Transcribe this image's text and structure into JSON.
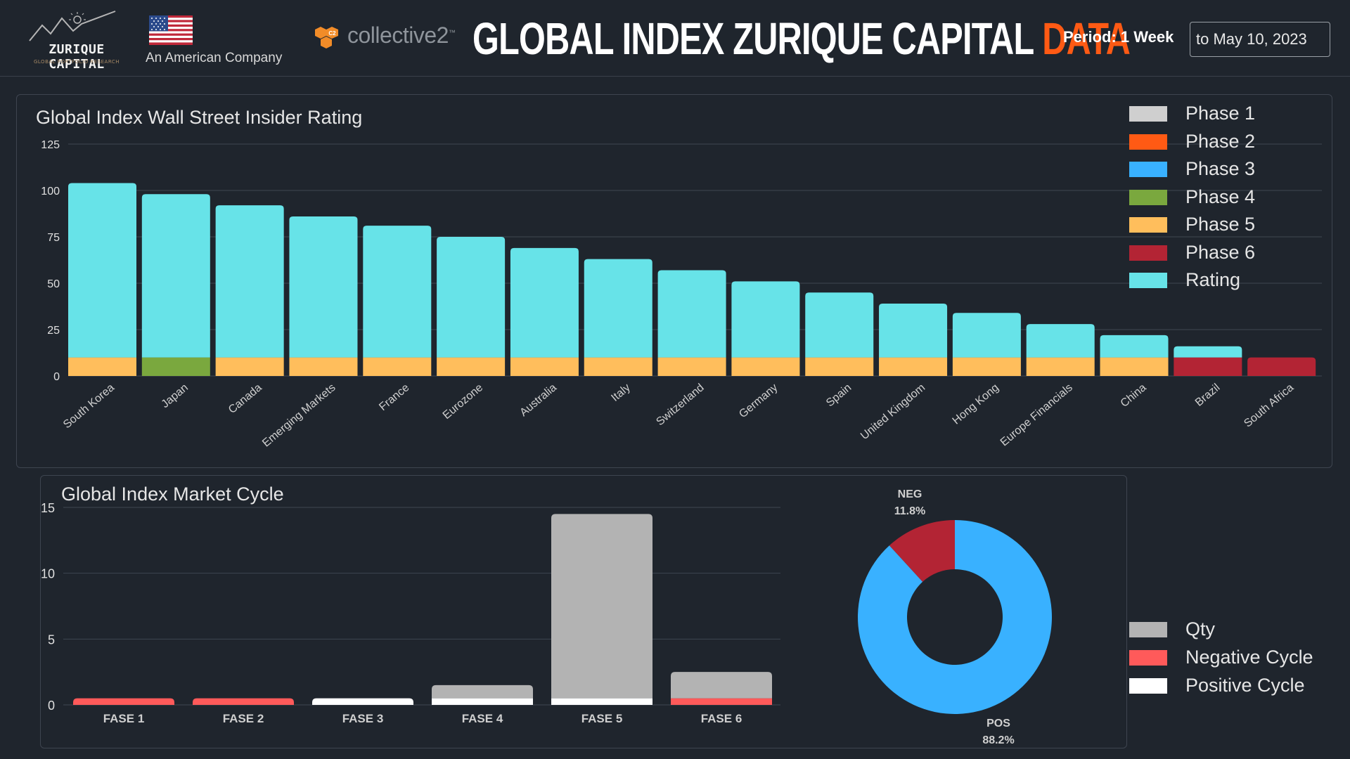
{
  "header": {
    "logo_name": "ZURIQUE CAPITAL",
    "logo_tagline": "GLOBAL PORTFOLIO RESEARCH",
    "company_note": "An American Company",
    "partner_logo": "collective2",
    "partner_badge": "C2",
    "partner_tm": "™",
    "title_main": "GLOBAL INDEX ZURIQUE CAPITAL ",
    "title_accent": "DATA",
    "period_label": "Period: 1 Week",
    "period_end": "to May 10, 2023"
  },
  "colors": {
    "phase1": "#cfcfcf",
    "phase2": "#ff5a14",
    "phase3": "#39b1ff",
    "phase4": "#7aa83e",
    "phase5": "#ffbe5c",
    "phase6": "#b32434",
    "rating": "#67e3e8",
    "qty": "#b3b3b3",
    "negative": "#ff5a5a",
    "positive": "#ffffff",
    "pos": "#39b1ff",
    "neg": "#b32434",
    "accent": "#ff5a14"
  },
  "chart_data": [
    {
      "type": "bar",
      "title": "Global Index Wall Street Insider Rating",
      "stacked": true,
      "ylim": [
        0,
        125
      ],
      "yticks": [
        0,
        25,
        50,
        75,
        100,
        125
      ],
      "grid": true,
      "legend_position": "top-right",
      "categories": [
        "South Korea",
        "Japan",
        "Canada",
        "Emerging Markets",
        "France",
        "Eurozone",
        "Australia",
        "Italy",
        "Switzerland",
        "Germany",
        "Spain",
        "United Kingdom",
        "Hong Kong",
        "Europe Financials",
        "China",
        "Brazil",
        "South Africa"
      ],
      "phase_labels": [
        "Phase 5",
        "Phase 4",
        "Phase 5",
        "Phase 5",
        "Phase 5",
        "Phase 5",
        "Phase 5",
        "Phase 5",
        "Phase 5",
        "Phase 5",
        "Phase 5",
        "Phase 5",
        "Phase 5",
        "Phase 5",
        "Phase 5",
        "Phase 6",
        "Phase 6"
      ],
      "series": [
        {
          "name": "Phase 1",
          "color_key": "phase1",
          "values": [
            0,
            0,
            0,
            0,
            0,
            0,
            0,
            0,
            0,
            0,
            0,
            0,
            0,
            0,
            0,
            0,
            0
          ]
        },
        {
          "name": "Phase 2",
          "color_key": "phase2",
          "values": [
            0,
            0,
            0,
            0,
            0,
            0,
            0,
            0,
            0,
            0,
            0,
            0,
            0,
            0,
            0,
            0,
            0
          ]
        },
        {
          "name": "Phase 3",
          "color_key": "phase3",
          "values": [
            0,
            0,
            0,
            0,
            0,
            0,
            0,
            0,
            0,
            0,
            0,
            0,
            0,
            0,
            0,
            0,
            0
          ]
        },
        {
          "name": "Phase 4",
          "color_key": "phase4",
          "values": [
            0,
            10,
            0,
            0,
            0,
            0,
            0,
            0,
            0,
            0,
            0,
            0,
            0,
            0,
            0,
            0,
            0
          ]
        },
        {
          "name": "Phase 5",
          "color_key": "phase5",
          "values": [
            10,
            0,
            10,
            10,
            10,
            10,
            10,
            10,
            10,
            10,
            10,
            10,
            10,
            10,
            10,
            0,
            0
          ]
        },
        {
          "name": "Phase 6",
          "color_key": "phase6",
          "values": [
            0,
            0,
            0,
            0,
            0,
            0,
            0,
            0,
            0,
            0,
            0,
            0,
            0,
            0,
            0,
            10,
            10
          ]
        },
        {
          "name": "Rating",
          "color_key": "rating",
          "values": [
            94,
            88,
            82,
            76,
            71,
            65,
            59,
            53,
            47,
            41,
            35,
            29,
            24,
            18,
            12,
            6,
            0
          ]
        }
      ]
    },
    {
      "type": "bar",
      "title": "Global Index Market Cycle",
      "stacked": true,
      "ylim": [
        0,
        15
      ],
      "yticks": [
        0,
        5,
        10,
        15
      ],
      "grid": true,
      "categories": [
        "FASE 1",
        "FASE 2",
        "FASE 3",
        "FASE 4",
        "FASE 5",
        "FASE 6"
      ],
      "series": [
        {
          "name": "Negative Cycle",
          "color_key": "negative",
          "values": [
            0.5,
            0.5,
            0,
            0,
            0,
            0.5
          ]
        },
        {
          "name": "Positive Cycle",
          "color_key": "positive",
          "values": [
            0,
            0,
            0.5,
            0.5,
            0.5,
            0
          ]
        },
        {
          "name": "Qty",
          "color_key": "qty",
          "values": [
            0,
            0,
            0,
            1,
            14,
            2
          ]
        }
      ],
      "legend": [
        "Qty",
        "Negative Cycle",
        "Positive Cycle"
      ]
    },
    {
      "type": "pie",
      "donut": true,
      "slices": [
        {
          "label": "NEG",
          "value": 11.8,
          "display": "11.8%",
          "color_key": "neg"
        },
        {
          "label": "POS",
          "value": 88.2,
          "display": "88.2%",
          "color_key": "pos"
        }
      ]
    }
  ]
}
